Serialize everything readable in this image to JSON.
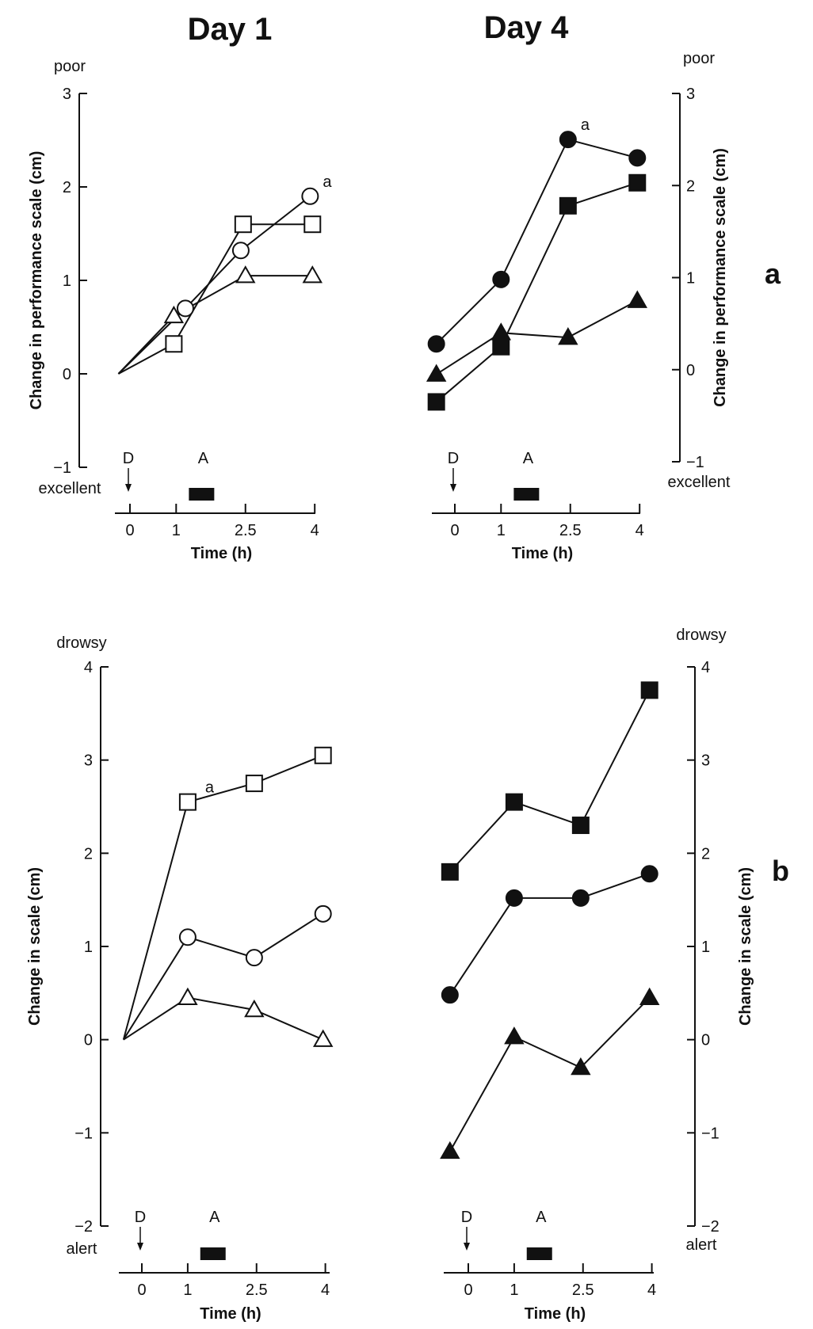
{
  "figure": {
    "column_titles": [
      "Day 1",
      "Day 4"
    ],
    "panel_labels": [
      "a",
      "b"
    ]
  },
  "chart_data": [
    {
      "id": "a-day1",
      "type": "line",
      "title": "Day 1",
      "ylabel": "Change in performance scale (cm)",
      "xlabel": "Time (h)",
      "ylim": [
        -1,
        3
      ],
      "yticks": [
        -1,
        0,
        1,
        2,
        3
      ],
      "xticks": [
        0,
        1,
        2.5,
        4
      ],
      "ytop_word": "poor",
      "ybottom_word": "excellent",
      "dose_marker": "D",
      "activity_marker": "A",
      "annotation": "a",
      "series": [
        {
          "marker": "circle-open",
          "x": [
            -0.25,
            1.2,
            2.4,
            3.9
          ],
          "y": [
            0,
            0.7,
            1.32,
            1.9
          ]
        },
        {
          "marker": "square-open",
          "x": [
            -0.25,
            0.95,
            2.45,
            3.95
          ],
          "y": [
            0,
            0.32,
            1.6,
            1.6
          ]
        },
        {
          "marker": "triangle-open",
          "x": [
            -0.25,
            0.95,
            2.5,
            3.95
          ],
          "y": [
            0,
            0.62,
            1.05,
            1.05
          ]
        }
      ]
    },
    {
      "id": "a-day4",
      "type": "line",
      "title": "Day 4",
      "ylabel": "Change in performance scale (cm)",
      "xlabel": "Time (h)",
      "ylim": [
        -1,
        3
      ],
      "yticks": [
        -1,
        0,
        1,
        2,
        3
      ],
      "xticks": [
        0,
        1,
        2.5,
        4
      ],
      "ytop_word": "poor",
      "ybottom_word": "excellent",
      "dose_marker": "D",
      "activity_marker": "A",
      "annotation": "a",
      "series": [
        {
          "marker": "circle-filled",
          "x": [
            -0.4,
            1.0,
            2.45,
            3.95
          ],
          "y": [
            0.28,
            0.98,
            2.5,
            2.3
          ]
        },
        {
          "marker": "square-filled",
          "x": [
            -0.4,
            1.0,
            2.45,
            3.95
          ],
          "y": [
            -0.35,
            0.25,
            1.78,
            2.03
          ]
        },
        {
          "marker": "triangle-filled",
          "x": [
            -0.4,
            1.0,
            2.45,
            3.95
          ],
          "y": [
            -0.05,
            0.4,
            0.35,
            0.75
          ]
        }
      ]
    },
    {
      "id": "b-day1",
      "type": "line",
      "ylabel": "Change in scale (cm)",
      "xlabel": "Time (h)",
      "ylim": [
        -2,
        4
      ],
      "yticks": [
        -2,
        -1,
        0,
        1,
        2,
        3,
        4
      ],
      "xticks": [
        0,
        1,
        2.5,
        4
      ],
      "ytop_word": "drowsy",
      "ybottom_word": "alert",
      "dose_marker": "D",
      "activity_marker": "A",
      "annotation": "a",
      "series": [
        {
          "marker": "square-open",
          "x": [
            -0.4,
            1.0,
            2.45,
            3.95
          ],
          "y": [
            0,
            2.55,
            2.75,
            3.05
          ]
        },
        {
          "marker": "circle-open",
          "x": [
            -0.4,
            1.0,
            2.45,
            3.95
          ],
          "y": [
            0,
            1.1,
            0.88,
            1.35
          ]
        },
        {
          "marker": "triangle-open",
          "x": [
            -0.4,
            1.0,
            2.45,
            3.95
          ],
          "y": [
            0,
            0.45,
            0.32,
            0
          ]
        }
      ]
    },
    {
      "id": "b-day4",
      "type": "line",
      "ylabel": "Change in scale (cm)",
      "xlabel": "Time (h)",
      "ylim": [
        -2,
        4
      ],
      "yticks": [
        -2,
        -1,
        0,
        1,
        2,
        3,
        4
      ],
      "xticks": [
        0,
        1,
        2.5,
        4
      ],
      "ytop_word": "drowsy",
      "ybottom_word": "alert",
      "dose_marker": "D",
      "activity_marker": "A",
      "series": [
        {
          "marker": "square-filled",
          "x": [
            -0.4,
            1.0,
            2.45,
            3.95
          ],
          "y": [
            1.8,
            2.55,
            2.3,
            3.75
          ]
        },
        {
          "marker": "circle-filled",
          "x": [
            -0.4,
            1.0,
            2.45,
            3.95
          ],
          "y": [
            0.48,
            1.52,
            1.52,
            1.78
          ]
        },
        {
          "marker": "triangle-filled",
          "x": [
            -0.4,
            1.0,
            2.45,
            3.95
          ],
          "y": [
            -1.2,
            0.03,
            -0.3,
            0.45
          ]
        }
      ]
    }
  ]
}
